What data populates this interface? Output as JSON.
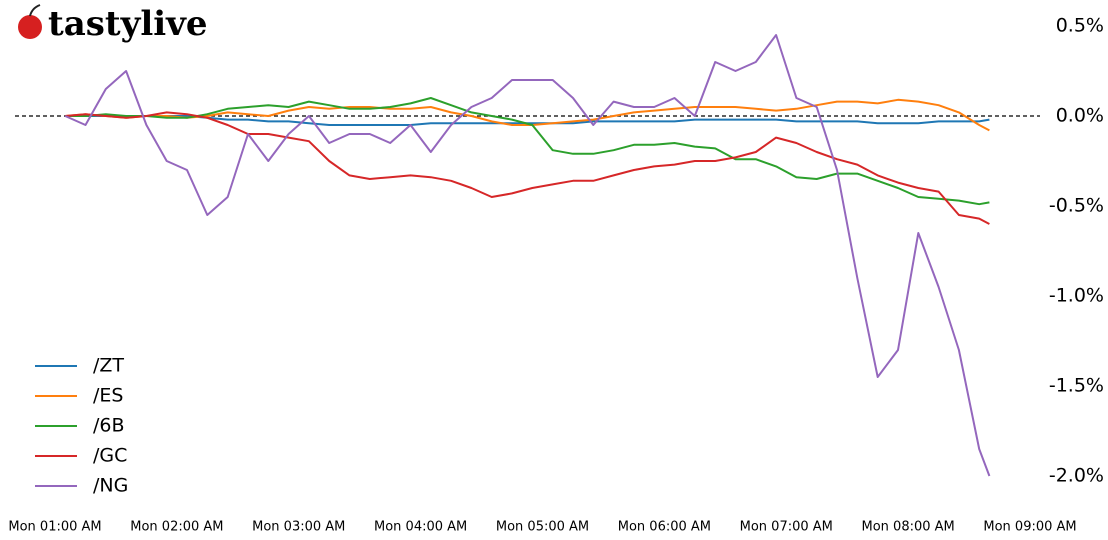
{
  "chart_data": {
    "type": "line",
    "logo": "tastylive",
    "x": [
      "Mon 01:05 AM",
      "Mon 01:15 AM",
      "Mon 01:25 AM",
      "Mon 01:35 AM",
      "Mon 01:45 AM",
      "Mon 01:55 AM",
      "Mon 02:05 AM",
      "Mon 02:15 AM",
      "Mon 02:25 AM",
      "Mon 02:35 AM",
      "Mon 02:45 AM",
      "Mon 02:55 AM",
      "Mon 03:05 AM",
      "Mon 03:15 AM",
      "Mon 03:25 AM",
      "Mon 03:35 AM",
      "Mon 03:45 AM",
      "Mon 03:55 AM",
      "Mon 04:05 AM",
      "Mon 04:15 AM",
      "Mon 04:25 AM",
      "Mon 04:35 AM",
      "Mon 04:45 AM",
      "Mon 04:55 AM",
      "Mon 05:05 AM",
      "Mon 05:15 AM",
      "Mon 05:25 AM",
      "Mon 05:35 AM",
      "Mon 05:45 AM",
      "Mon 05:55 AM",
      "Mon 06:05 AM",
      "Mon 06:15 AM",
      "Mon 06:25 AM",
      "Mon 06:35 AM",
      "Mon 06:45 AM",
      "Mon 06:55 AM",
      "Mon 07:05 AM",
      "Mon 07:15 AM",
      "Mon 07:25 AM",
      "Mon 07:35 AM",
      "Mon 07:45 AM",
      "Mon 07:55 AM",
      "Mon 08:05 AM",
      "Mon 08:15 AM",
      "Mon 08:25 AM",
      "Mon 08:35 AM",
      "Mon 08:40 AM"
    ],
    "series": [
      {
        "name": "/ZT",
        "color": "#1f77b4",
        "values": [
          0,
          0,
          0,
          0,
          0,
          0,
          0,
          -0.01,
          -0.02,
          -0.02,
          -0.03,
          -0.03,
          -0.04,
          -0.05,
          -0.05,
          -0.05,
          -0.05,
          -0.05,
          -0.04,
          -0.04,
          -0.04,
          -0.04,
          -0.04,
          -0.04,
          -0.04,
          -0.04,
          -0.03,
          -0.03,
          -0.03,
          -0.03,
          -0.03,
          -0.02,
          -0.02,
          -0.02,
          -0.02,
          -0.02,
          -0.03,
          -0.03,
          -0.03,
          -0.03,
          -0.04,
          -0.04,
          -0.04,
          -0.03,
          -0.03,
          -0.03,
          -0.02
        ]
      },
      {
        "name": "/ES",
        "color": "#ff7f0e",
        "values": [
          0,
          0.01,
          0,
          -0.01,
          0,
          0,
          -0.01,
          0,
          0.02,
          0.01,
          0,
          0.03,
          0.05,
          0.04,
          0.05,
          0.05,
          0.04,
          0.04,
          0.05,
          0.02,
          0,
          -0.03,
          -0.05,
          -0.05,
          -0.04,
          -0.03,
          -0.02,
          0,
          0.02,
          0.03,
          0.04,
          0.05,
          0.05,
          0.05,
          0.04,
          0.03,
          0.04,
          0.06,
          0.08,
          0.08,
          0.07,
          0.09,
          0.08,
          0.06,
          0.02,
          -0.05,
          -0.08
        ]
      },
      {
        "name": "/6B",
        "color": "#2ca02c",
        "values": [
          0,
          0,
          0.01,
          0,
          0,
          -0.01,
          -0.01,
          0.01,
          0.04,
          0.05,
          0.06,
          0.05,
          0.08,
          0.06,
          0.04,
          0.04,
          0.05,
          0.07,
          0.1,
          0.06,
          0.02,
          0,
          -0.02,
          -0.05,
          -0.19,
          -0.21,
          -0.21,
          -0.19,
          -0.16,
          -0.16,
          -0.15,
          -0.17,
          -0.18,
          -0.24,
          -0.24,
          -0.28,
          -0.34,
          -0.35,
          -0.32,
          -0.32,
          -0.36,
          -0.4,
          -0.45,
          -0.46,
          -0.47,
          -0.49,
          -0.48
        ]
      },
      {
        "name": "/GC",
        "color": "#d62728",
        "values": [
          0,
          0.01,
          0,
          -0.01,
          0,
          0.02,
          0.01,
          -0.01,
          -0.05,
          -0.1,
          -0.1,
          -0.12,
          -0.14,
          -0.25,
          -0.33,
          -0.35,
          -0.34,
          -0.33,
          -0.34,
          -0.36,
          -0.4,
          -0.45,
          -0.43,
          -0.4,
          -0.38,
          -0.36,
          -0.36,
          -0.33,
          -0.3,
          -0.28,
          -0.27,
          -0.25,
          -0.25,
          -0.23,
          -0.2,
          -0.12,
          -0.15,
          -0.2,
          -0.24,
          -0.27,
          -0.33,
          -0.37,
          -0.4,
          -0.42,
          -0.55,
          -0.57,
          -0.6
        ]
      },
      {
        "name": "/NG",
        "color": "#9467bd",
        "values": [
          0,
          -0.05,
          0.15,
          0.25,
          -0.05,
          -0.25,
          -0.3,
          -0.55,
          -0.45,
          -0.1,
          -0.25,
          -0.1,
          0,
          -0.15,
          -0.1,
          -0.1,
          -0.15,
          -0.05,
          -0.2,
          -0.05,
          0.05,
          0.1,
          0.2,
          0.2,
          0.2,
          0.1,
          -0.05,
          0.08,
          0.05,
          0.05,
          0.1,
          0,
          0.3,
          0.25,
          0.3,
          0.45,
          0.1,
          0.05,
          -0.3,
          -0.9,
          -1.45,
          -1.3,
          -0.65,
          -0.95,
          -1.3,
          -1.85,
          -2.0
        ]
      }
    ],
    "baseline": 0,
    "xlim": [
      "Mon 01:00 AM",
      "Mon 09:00 AM"
    ],
    "xticks": [
      "Mon 01:00 AM",
      "Mon 02:00 AM",
      "Mon 03:00 AM",
      "Mon 04:00 AM",
      "Mon 05:00 AM",
      "Mon 06:00 AM",
      "Mon 07:00 AM",
      "Mon 08:00 AM",
      "Mon 09:00 AM"
    ],
    "ylim": [
      -2.1,
      0.55
    ],
    "yticks": [
      {
        "value": 0.5,
        "label": "0.5%"
      },
      {
        "value": 0,
        "label": "0.0%"
      },
      {
        "value": -0.5,
        "label": "-0.5%"
      },
      {
        "value": -1,
        "label": "-1.0%"
      },
      {
        "value": -1.5,
        "label": "-1.5%"
      },
      {
        "value": -2,
        "label": "-2.0%"
      }
    ],
    "legend": "lower left"
  }
}
